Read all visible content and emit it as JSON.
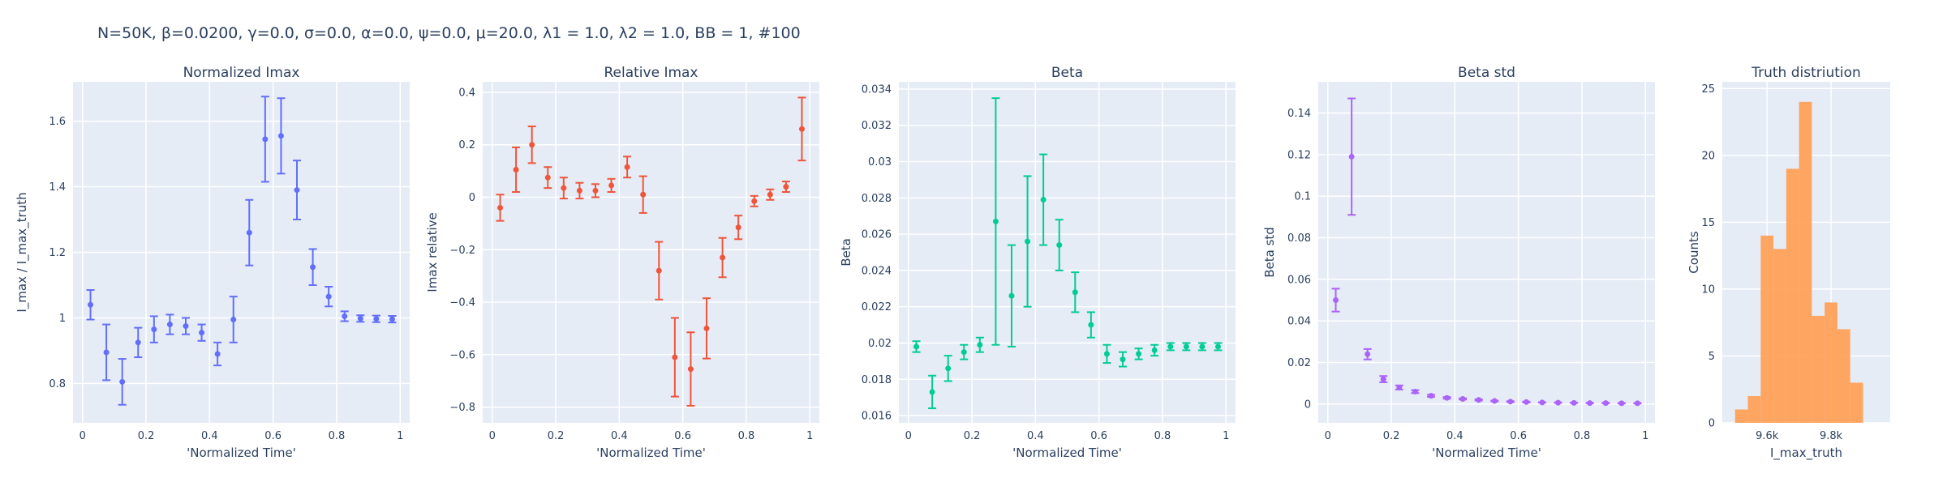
{
  "suptitle": "N=50K, β=0.0200, γ=0.0, σ=0.0,  α=0.0, ψ=0.0, μ=20.0, λ1 = 1.0, λ2 = 1.0, BB = 1, #100",
  "chart_data": [
    {
      "type": "scatter",
      "title": "Normalized Imax",
      "xlabel": "'Normalized Time'",
      "ylabel": "I_max / I_max_truth",
      "color": "#636efa",
      "xlim": [
        -0.03,
        1.03
      ],
      "ylim": [
        0.68,
        1.72
      ],
      "xticks": [
        0,
        0.2,
        0.4,
        0.6,
        0.8,
        1
      ],
      "xtick_labels": [
        "0",
        "0.2",
        "0.4",
        "0.6",
        "0.8",
        "1"
      ],
      "yticks": [
        0.8,
        1,
        1.2,
        1.4,
        1.6
      ],
      "ytick_labels": [
        "0.8",
        "1",
        "1.2",
        "1.4",
        "1.6"
      ],
      "x": [
        0.025,
        0.075,
        0.125,
        0.175,
        0.225,
        0.275,
        0.325,
        0.375,
        0.425,
        0.475,
        0.525,
        0.575,
        0.625,
        0.675,
        0.725,
        0.775,
        0.825,
        0.875,
        0.925,
        0.975
      ],
      "y": [
        1.04,
        0.895,
        0.805,
        0.925,
        0.965,
        0.98,
        0.975,
        0.955,
        0.89,
        0.995,
        1.26,
        1.545,
        1.555,
        1.39,
        1.155,
        1.065,
        1.005,
        0.998,
        0.997,
        0.996
      ],
      "error": [
        0.045,
        0.085,
        0.07,
        0.045,
        0.04,
        0.03,
        0.025,
        0.025,
        0.035,
        0.07,
        0.1,
        0.13,
        0.115,
        0.09,
        0.055,
        0.03,
        0.015,
        0.01,
        0.01,
        0.01
      ]
    },
    {
      "type": "scatter",
      "title": "Relative Imax",
      "xlabel": "'Normalized Time'",
      "ylabel": "Imax relative",
      "color": "#ef553b",
      "xlim": [
        -0.03,
        1.03
      ],
      "ylim": [
        -0.86,
        0.44
      ],
      "xticks": [
        0,
        0.2,
        0.4,
        0.6,
        0.8,
        1
      ],
      "xtick_labels": [
        "0",
        "0.2",
        "0.4",
        "0.6",
        "0.8",
        "1"
      ],
      "yticks": [
        -0.8,
        -0.6,
        -0.4,
        -0.2,
        0,
        0.2,
        0.4
      ],
      "ytick_labels": [
        "−0.8",
        "−0.6",
        "−0.4",
        "−0.2",
        "0",
        "0.2",
        "0.4"
      ],
      "x": [
        0.025,
        0.075,
        0.125,
        0.175,
        0.225,
        0.275,
        0.325,
        0.375,
        0.425,
        0.475,
        0.525,
        0.575,
        0.625,
        0.675,
        0.725,
        0.775,
        0.825,
        0.875,
        0.925,
        0.975
      ],
      "y": [
        -0.04,
        0.105,
        0.2,
        0.075,
        0.035,
        0.025,
        0.025,
        0.045,
        0.115,
        0.01,
        -0.28,
        -0.61,
        -0.655,
        -0.5,
        -0.23,
        -0.115,
        -0.015,
        0.01,
        0.04,
        0.26
      ],
      "error": [
        0.05,
        0.085,
        0.07,
        0.04,
        0.04,
        0.03,
        0.025,
        0.025,
        0.04,
        0.07,
        0.11,
        0.15,
        0.14,
        0.115,
        0.075,
        0.045,
        0.02,
        0.02,
        0.02,
        0.12
      ]
    },
    {
      "type": "scatter",
      "title": "Beta",
      "xlabel": "'Normalized Time'",
      "ylabel": "Beta",
      "color": "#00cc96",
      "xlim": [
        -0.03,
        1.03
      ],
      "ylim": [
        0.0156,
        0.0344
      ],
      "xticks": [
        0,
        0.2,
        0.4,
        0.6,
        0.8,
        1
      ],
      "xtick_labels": [
        "0",
        "0.2",
        "0.4",
        "0.6",
        "0.8",
        "1"
      ],
      "yticks": [
        0.016,
        0.018,
        0.02,
        0.022,
        0.024,
        0.026,
        0.028,
        0.03,
        0.032,
        0.034
      ],
      "ytick_labels": [
        "0.016",
        "0.018",
        "0.02",
        "0.022",
        "0.024",
        "0.026",
        "0.028",
        "0.03",
        "0.032",
        "0.034"
      ],
      "x": [
        0.025,
        0.075,
        0.125,
        0.175,
        0.225,
        0.275,
        0.325,
        0.375,
        0.425,
        0.475,
        0.525,
        0.575,
        0.625,
        0.675,
        0.725,
        0.775,
        0.825,
        0.875,
        0.925,
        0.975
      ],
      "y": [
        0.0198,
        0.0173,
        0.0186,
        0.0195,
        0.0199,
        0.0267,
        0.0226,
        0.0256,
        0.0279,
        0.0254,
        0.0228,
        0.021,
        0.0194,
        0.0191,
        0.0194,
        0.0196,
        0.0198,
        0.0198,
        0.0198,
        0.0198
      ],
      "error": [
        0.0003,
        0.0009,
        0.0007,
        0.0004,
        0.0004,
        0.0068,
        0.0028,
        0.0036,
        0.0025,
        0.0014,
        0.0011,
        0.0007,
        0.0005,
        0.0004,
        0.0003,
        0.0003,
        0.0002,
        0.0002,
        0.0002,
        0.0002
      ]
    },
    {
      "type": "scatter",
      "title": "Beta std",
      "xlabel": "'Normalized Time'",
      "ylabel": "Beta std",
      "color": "#ab63fa",
      "xlim": [
        -0.03,
        1.03
      ],
      "ylim": [
        -0.009,
        0.155
      ],
      "xticks": [
        0,
        0.2,
        0.4,
        0.6,
        0.8,
        1
      ],
      "xtick_labels": [
        "0",
        "0.2",
        "0.4",
        "0.6",
        "0.8",
        "1"
      ],
      "yticks": [
        0,
        0.02,
        0.04,
        0.06,
        0.08,
        0.1,
        0.12,
        0.14
      ],
      "ytick_labels": [
        "0",
        "0.02",
        "0.04",
        "0.06",
        "0.08",
        "0.1",
        "0.12",
        "0.14"
      ],
      "x": [
        0.025,
        0.075,
        0.125,
        0.175,
        0.225,
        0.275,
        0.325,
        0.375,
        0.425,
        0.475,
        0.525,
        0.575,
        0.625,
        0.675,
        0.725,
        0.775,
        0.825,
        0.875,
        0.925,
        0.975
      ],
      "y": [
        0.05,
        0.119,
        0.024,
        0.012,
        0.008,
        0.006,
        0.004,
        0.003,
        0.0025,
        0.002,
        0.0015,
        0.0012,
        0.001,
        0.0008,
        0.0007,
        0.0006,
        0.0005,
        0.0005,
        0.0004,
        0.0004
      ],
      "error": [
        0.0055,
        0.028,
        0.0025,
        0.0015,
        0.001,
        0.0007,
        0.0005,
        0.0004,
        0.0003,
        0.0003,
        0.0002,
        0.0002,
        0.0002,
        0.0001,
        0.0001,
        0.0001,
        0.0001,
        0.0001,
        0.0001,
        0.0001
      ]
    },
    {
      "type": "bar",
      "title": "Truth distriution",
      "xlabel": "I_max_truth",
      "ylabel": "Counts",
      "color": "#ffa15a",
      "xlim": [
        9460,
        9985
      ],
      "ylim": [
        0,
        25.5
      ],
      "xticks": [
        9600,
        9800
      ],
      "xtick_labels": [
        "9.6k",
        "9.8k"
      ],
      "yticks": [
        0,
        5,
        10,
        15,
        20,
        25
      ],
      "ytick_labels": [
        "0",
        "5",
        "10",
        "15",
        "20",
        "25"
      ],
      "bin_edges": [
        9460,
        9500,
        9540,
        9580,
        9620,
        9660,
        9700,
        9740,
        9780,
        9820,
        9860,
        9900,
        9940,
        9985
      ],
      "counts": [
        0,
        1,
        2,
        14,
        13,
        19,
        24,
        8,
        9,
        7,
        3,
        0,
        0
      ]
    }
  ]
}
